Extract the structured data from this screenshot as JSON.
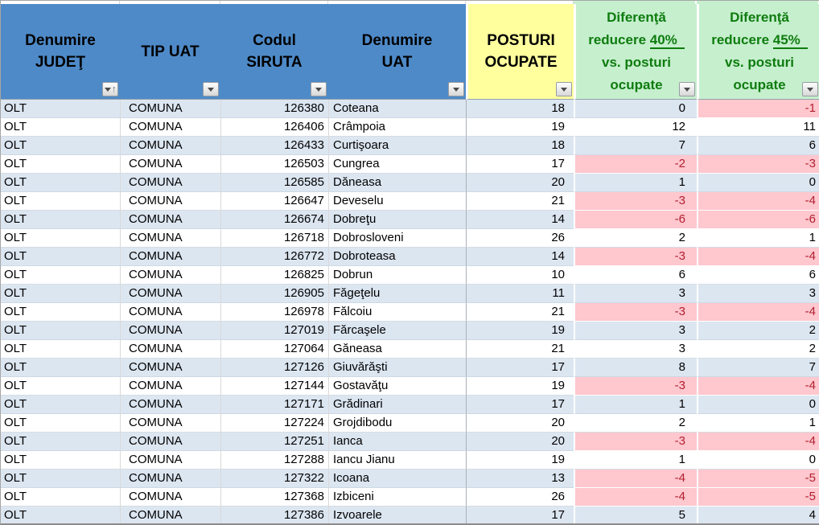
{
  "app": "spreadsheet-filtered-table",
  "colors": {
    "header_blue": "#4E8AC8",
    "header_yellow": "#FFFF9E",
    "header_green_bg": "#C6EFCE",
    "header_green_text": "#0E7C0E",
    "band_row_blue": "#DCE6F1",
    "negative_bg": "#FFC7CE",
    "negative_text": "#B02030"
  },
  "table": {
    "header": {
      "judet": [
        "Denumire",
        "JUDEŢ"
      ],
      "tip": [
        "TIP UAT"
      ],
      "siruta": [
        "Codul",
        "SIRUTA"
      ],
      "uat": [
        "Denumire",
        "UAT"
      ],
      "posturi": [
        "POSTURI",
        "OCUPATE"
      ],
      "dif40": {
        "l1": "Diferenţă",
        "l2a": "reducere ",
        "l2b": "40%",
        "l3": "vs. posturi",
        "l4": "ocupate"
      },
      "dif45": {
        "l1": "Diferenţă",
        "l2a": "reducere ",
        "l2b": "45%",
        "l3": "vs. posturi",
        "l4": "ocupate"
      }
    },
    "filters": {
      "judet_sorted_ascending": true,
      "dropdown_columns": [
        "tip",
        "siruta",
        "uat",
        "posturi",
        "dif40",
        "dif45"
      ]
    },
    "rows": [
      [
        "OLT",
        "COMUNA",
        "126380",
        "Coteana",
        18,
        0,
        -1
      ],
      [
        "OLT",
        "COMUNA",
        "126406",
        "Crâmpoia",
        19,
        12,
        11
      ],
      [
        "OLT",
        "COMUNA",
        "126433",
        "Curtişoara",
        18,
        7,
        6
      ],
      [
        "OLT",
        "COMUNA",
        "126503",
        "Cungrea",
        17,
        -2,
        -3
      ],
      [
        "OLT",
        "COMUNA",
        "126585",
        "Dăneasa",
        20,
        1,
        0
      ],
      [
        "OLT",
        "COMUNA",
        "126647",
        "Deveselu",
        21,
        -3,
        -4
      ],
      [
        "OLT",
        "COMUNA",
        "126674",
        "Dobreţu",
        14,
        -6,
        -6
      ],
      [
        "OLT",
        "COMUNA",
        "126718",
        "Dobrosloveni",
        26,
        2,
        1
      ],
      [
        "OLT",
        "COMUNA",
        "126772",
        "Dobroteasa",
        14,
        -3,
        -4
      ],
      [
        "OLT",
        "COMUNA",
        "126825",
        "Dobrun",
        10,
        6,
        6
      ],
      [
        "OLT",
        "COMUNA",
        "126905",
        "Făgeţelu",
        11,
        3,
        3
      ],
      [
        "OLT",
        "COMUNA",
        "126978",
        "Fălcoiu",
        21,
        -3,
        -4
      ],
      [
        "OLT",
        "COMUNA",
        "127019",
        "Fărcaşele",
        19,
        3,
        2
      ],
      [
        "OLT",
        "COMUNA",
        "127064",
        "Găneasa",
        21,
        3,
        2
      ],
      [
        "OLT",
        "COMUNA",
        "127126",
        "Giuvărăşti",
        17,
        8,
        7
      ],
      [
        "OLT",
        "COMUNA",
        "127144",
        "Gostavăţu",
        19,
        -3,
        -4
      ],
      [
        "OLT",
        "COMUNA",
        "127171",
        "Grădinari",
        17,
        1,
        0
      ],
      [
        "OLT",
        "COMUNA",
        "127224",
        "Grojdibodu",
        20,
        2,
        1
      ],
      [
        "OLT",
        "COMUNA",
        "127251",
        "Ianca",
        20,
        -3,
        -4
      ],
      [
        "OLT",
        "COMUNA",
        "127288",
        "Iancu Jianu",
        19,
        1,
        0
      ],
      [
        "OLT",
        "COMUNA",
        "127322",
        "Icoana",
        13,
        -4,
        -5
      ],
      [
        "OLT",
        "COMUNA",
        "127368",
        "Izbiceni",
        26,
        -4,
        -5
      ],
      [
        "OLT",
        "COMUNA",
        "127386",
        "Izvoarele",
        17,
        5,
        4
      ]
    ]
  }
}
